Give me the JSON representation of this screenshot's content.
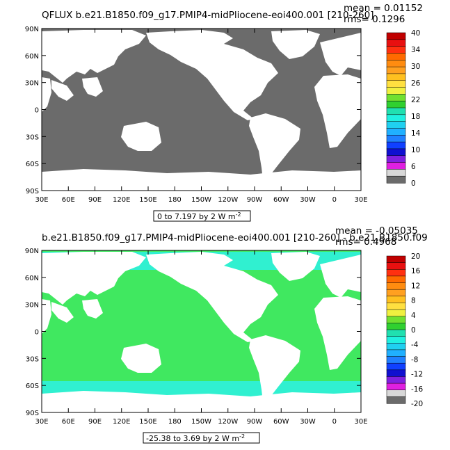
{
  "panels": [
    {
      "title": "QFLUX b.e21.B1850.f09_g17.PMIP4-midPliocene-eoi400.001 [210-260]",
      "stats": {
        "mean": "mean = 0.01152",
        "rms": "rms= 0.1296"
      },
      "range_label": "0 to 7.197 by 2  W m",
      "range_exp": "-2",
      "y_ticks": [
        "90N",
        "60N",
        "30N",
        "0",
        "30S",
        "60S",
        "90S"
      ],
      "x_ticks": [
        "30E",
        "60E",
        "90E",
        "120E",
        "150E",
        "180",
        "150W",
        "120W",
        "90W",
        "60W",
        "30W",
        "0",
        "30E"
      ],
      "colorbar_labels": [
        "40",
        "34",
        "30",
        "26",
        "22",
        "18",
        "14",
        "10",
        "6",
        "0"
      ],
      "ocean_color": "#6b6b6b",
      "colorbar_colors": [
        "#c00000",
        "#e81010",
        "#ff3010",
        "#ff6a00",
        "#ff8c10",
        "#ffa020",
        "#ffc020",
        "#ffe040",
        "#f0f040",
        "#70e030",
        "#30d030",
        "#20e0b0",
        "#20f0e0",
        "#20d0f0",
        "#20b0ff",
        "#2080ff",
        "#1040ff",
        "#1010d0",
        "#8020e0",
        "#e020e0",
        "#d8d8d8",
        "#6b6b6b"
      ]
    },
    {
      "title": "b.e21.B1850.f09_g17.PMIP4-midPliocene-eoi400.001 [210-260] - b.e21.B1850.f09",
      "stats": {
        "mean": "mean = -0.05035",
        "rms": "rms= 0.4968"
      },
      "range_label": "-25.38 to 3.69 by 2  W m",
      "range_exp": "-2",
      "y_ticks": [
        "90N",
        "60N",
        "30N",
        "0",
        "30S",
        "60S",
        "90S"
      ],
      "x_ticks": [
        "30E",
        "60E",
        "90E",
        "120E",
        "150E",
        "180",
        "150W",
        "120W",
        "90W",
        "60W",
        "30W",
        "0",
        "30E"
      ],
      "colorbar_labels": [
        "20",
        "16",
        "12",
        "8",
        "4",
        "0",
        "-4",
        "-8",
        "-12",
        "-16",
        "-20"
      ],
      "ocean_color": "#40e860",
      "polar_color": "#30f0d0",
      "colorbar_colors": [
        "#c00000",
        "#e81010",
        "#ff3010",
        "#ff6a00",
        "#ff8c10",
        "#ffa020",
        "#ffc020",
        "#ffe040",
        "#f0f040",
        "#70e030",
        "#30d030",
        "#20e0b0",
        "#20f0e0",
        "#20d0f0",
        "#20b0ff",
        "#2080ff",
        "#1040ff",
        "#1010d0",
        "#8020e0",
        "#e020e0",
        "#d8d8d8",
        "#6b6b6b"
      ]
    }
  ]
}
